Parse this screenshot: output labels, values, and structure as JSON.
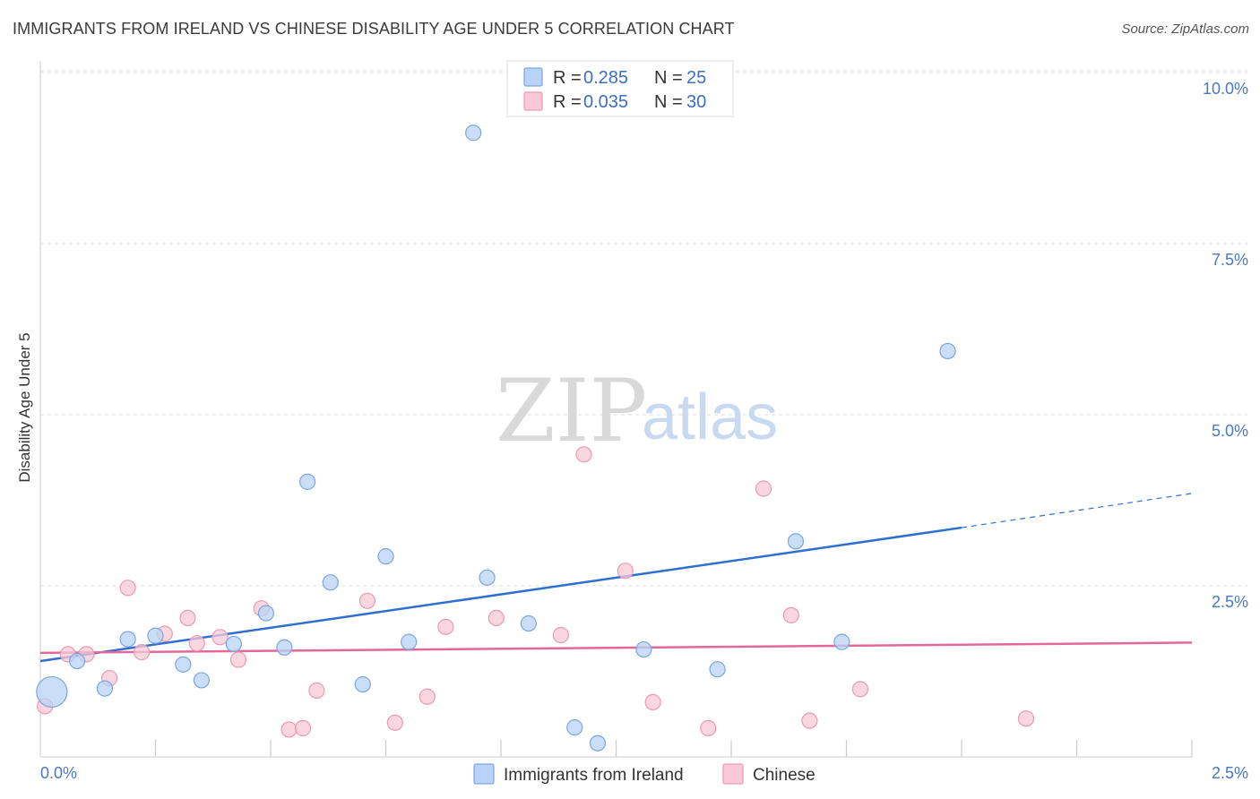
{
  "title": "IMMIGRANTS FROM IRELAND VS CHINESE DISABILITY AGE UNDER 5 CORRELATION CHART",
  "source": "Source: ZipAtlas.com",
  "watermark": {
    "zip": "ZIP",
    "atlas": "atlas"
  },
  "legend": {
    "r_label": "R =",
    "n_label": "N =",
    "rows": [
      {
        "r": "0.285",
        "n": "25"
      },
      {
        "r": "0.035",
        "n": "30"
      }
    ]
  },
  "colors": {
    "series1_fill": "#b8d3f5",
    "series1_stroke": "#7aa6e0",
    "series1_line": "#2f6fd0",
    "series2_fill": "#f8c8d6",
    "series2_stroke": "#eb9ab2",
    "series2_line": "#e3689a",
    "axis_label": "#4a78c2",
    "grid": "#dddddd"
  },
  "chart_data": {
    "type": "scatter",
    "title": "IMMIGRANTS FROM IRELAND VS CHINESE DISABILITY AGE UNDER 5 CORRELATION CHART",
    "xlabel": "",
    "ylabel": "Disability Age Under 5",
    "xlim": [
      0,
      2.5
    ],
    "ylim": [
      0,
      10.5
    ],
    "x_tick_labels": [
      "0.0%",
      "2.5%"
    ],
    "y_ticks": [
      2.5,
      5.0,
      7.5,
      10.0
    ],
    "y_tick_labels": [
      "2.5%",
      "5.0%",
      "7.5%",
      "10.0%"
    ],
    "grid": true,
    "legend_position": "top-center",
    "series": [
      {
        "name": "Immigrants from Ireland",
        "r": 0.285,
        "n": 25,
        "trend": {
          "x0": 0.0,
          "y0": 1.4,
          "x1": 2.0,
          "y1": 3.35,
          "dashed_to_x": 2.5,
          "dashed_to_y": 3.85
        },
        "points": [
          {
            "x": 0.025,
            "y": 0.95,
            "big": true
          },
          {
            "x": 0.08,
            "y": 1.4
          },
          {
            "x": 0.14,
            "y": 1.0
          },
          {
            "x": 0.19,
            "y": 1.72
          },
          {
            "x": 0.25,
            "y": 1.77
          },
          {
            "x": 0.31,
            "y": 1.35
          },
          {
            "x": 0.35,
            "y": 1.12
          },
          {
            "x": 0.42,
            "y": 1.65
          },
          {
            "x": 0.49,
            "y": 2.1
          },
          {
            "x": 0.53,
            "y": 1.6
          },
          {
            "x": 0.58,
            "y": 4.02
          },
          {
            "x": 0.63,
            "y": 2.55
          },
          {
            "x": 0.7,
            "y": 1.06
          },
          {
            "x": 0.75,
            "y": 2.93
          },
          {
            "x": 0.8,
            "y": 1.68
          },
          {
            "x": 0.94,
            "y": 9.12
          },
          {
            "x": 0.97,
            "y": 2.62
          },
          {
            "x": 1.06,
            "y": 1.95
          },
          {
            "x": 1.16,
            "y": 0.43
          },
          {
            "x": 1.21,
            "y": 0.2
          },
          {
            "x": 1.31,
            "y": 1.57
          },
          {
            "x": 1.47,
            "y": 1.28
          },
          {
            "x": 1.64,
            "y": 3.15
          },
          {
            "x": 1.74,
            "y": 1.68
          },
          {
            "x": 1.97,
            "y": 5.93
          }
        ]
      },
      {
        "name": "Chinese",
        "r": 0.035,
        "n": 30,
        "trend": {
          "x0": 0.0,
          "y0": 1.52,
          "x1": 2.5,
          "y1": 1.67
        },
        "points": [
          {
            "x": 0.01,
            "y": 0.74
          },
          {
            "x": 0.06,
            "y": 1.5
          },
          {
            "x": 0.1,
            "y": 1.5
          },
          {
            "x": 0.15,
            "y": 1.15
          },
          {
            "x": 0.19,
            "y": 2.47
          },
          {
            "x": 0.22,
            "y": 1.53
          },
          {
            "x": 0.27,
            "y": 1.8
          },
          {
            "x": 0.32,
            "y": 2.03
          },
          {
            "x": 0.34,
            "y": 1.66
          },
          {
            "x": 0.39,
            "y": 1.75
          },
          {
            "x": 0.43,
            "y": 1.42
          },
          {
            "x": 0.48,
            "y": 2.17
          },
          {
            "x": 0.54,
            "y": 0.4
          },
          {
            "x": 0.57,
            "y": 0.42
          },
          {
            "x": 0.6,
            "y": 0.97
          },
          {
            "x": 0.71,
            "y": 2.28
          },
          {
            "x": 0.77,
            "y": 0.5
          },
          {
            "x": 0.84,
            "y": 0.88
          },
          {
            "x": 0.88,
            "y": 1.9
          },
          {
            "x": 0.99,
            "y": 2.03
          },
          {
            "x": 1.13,
            "y": 1.78
          },
          {
            "x": 1.18,
            "y": 4.42
          },
          {
            "x": 1.27,
            "y": 2.72
          },
          {
            "x": 1.33,
            "y": 0.8
          },
          {
            "x": 1.45,
            "y": 0.42
          },
          {
            "x": 1.57,
            "y": 3.92
          },
          {
            "x": 1.63,
            "y": 2.07
          },
          {
            "x": 1.67,
            "y": 0.53
          },
          {
            "x": 1.78,
            "y": 0.99
          },
          {
            "x": 2.14,
            "y": 0.56
          }
        ]
      }
    ]
  }
}
